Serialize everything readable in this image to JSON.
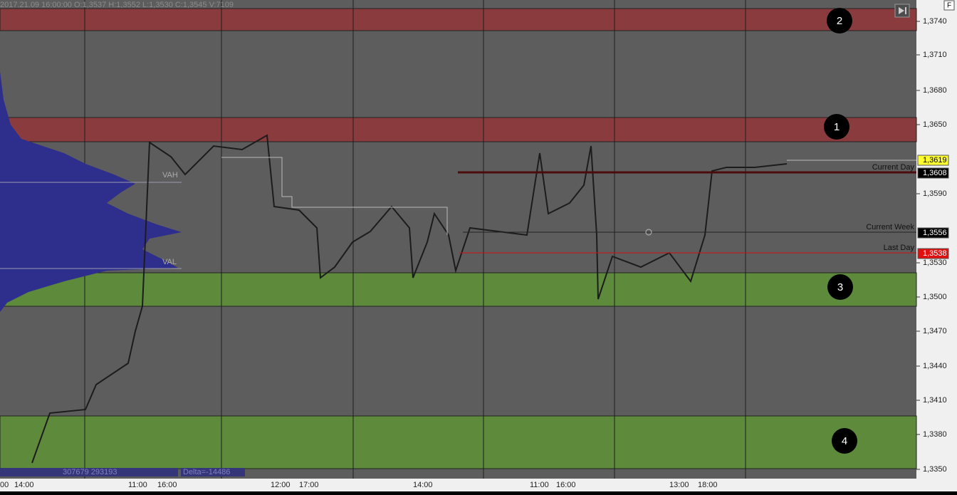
{
  "header": {
    "bar_info": "2017.21.09 16:00:00   O:1,3537   H:1,3552   L:1,3530   C:1,3545   V:7109",
    "corner_button": "F"
  },
  "price_axis": [
    "1,3740",
    "1,3710",
    "1,3680",
    "1,3650",
    "1,3590",
    "1,3530",
    "1,3500",
    "1,3470",
    "1,3440",
    "1,3410",
    "1,3380",
    "1,3350"
  ],
  "price_tags": [
    {
      "text": "1,3619"
    },
    {
      "text": "1,3608"
    },
    {
      "text": "1,3556"
    },
    {
      "text": "1,3538"
    }
  ],
  "levels": [
    "Current Day",
    "Current Week",
    "Last Day"
  ],
  "zones": [
    "1",
    "2",
    "3",
    "4"
  ],
  "profile": {
    "vah": "VAH",
    "val": "VAL",
    "volumes": "307679  293193",
    "delta": "Delta=-14486"
  },
  "time_axis": [
    "00",
    "14:00",
    "11:00",
    "16:00",
    "12:00",
    "17:00",
    "14:00",
    "11:00",
    "16:00",
    "13:00",
    "18:00"
  ]
}
